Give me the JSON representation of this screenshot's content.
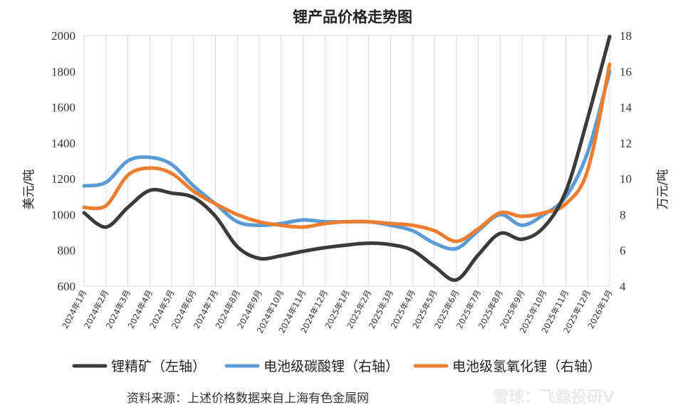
{
  "chart_data": {
    "type": "line",
    "title": "锂产品价格走势图",
    "ylabel_left": "美元/吨",
    "ylabel_right": "万元/吨",
    "ylim_left": [
      600,
      2000
    ],
    "ylim_right": [
      4,
      18
    ],
    "yticks_left": [
      "600",
      "800",
      "1000",
      "1200",
      "1400",
      "1600",
      "1800",
      "2000"
    ],
    "yticks_right": [
      "4",
      "6",
      "8",
      "10",
      "12",
      "14",
      "16",
      "18"
    ],
    "categories": [
      "2024年1月",
      "2024年2月",
      "2024年3月",
      "2024年4月",
      "2024年5月",
      "2024年6月",
      "2024年7月",
      "2024年8月",
      "2024年9月",
      "2024年10月",
      "2024年11月",
      "2024年12月",
      "2025年1月",
      "2025年2月",
      "2025年3月",
      "2025年4月",
      "2025年5月",
      "2025年6月",
      "2025年7月",
      "2025年8月",
      "2025年9月",
      "2025年10月",
      "2025年11月",
      "2025年12月",
      "2026年1月"
    ],
    "series": [
      {
        "name": "锂精矿（左轴）",
        "axis": "left",
        "color": "#3a3a3a",
        "values": [
          1010,
          930,
          1040,
          1135,
          1120,
          1095,
          990,
          820,
          755,
          770,
          795,
          815,
          830,
          840,
          832,
          800,
          710,
          635,
          775,
          895,
          862,
          930,
          1130,
          1540,
          1995
        ]
      },
      {
        "name": "电池级碳酸锂（右轴）",
        "axis": "right",
        "color": "#5b9bd5",
        "values": [
          9.6,
          9.8,
          11.0,
          11.2,
          10.8,
          9.6,
          8.6,
          7.6,
          7.4,
          7.5,
          7.7,
          7.6,
          7.6,
          7.6,
          7.4,
          7.1,
          6.4,
          6.1,
          7.1,
          8.0,
          7.4,
          8.0,
          9.0,
          11.5,
          16.0
        ]
      },
      {
        "name": "电池级氢氧化锂（右轴）",
        "axis": "right",
        "color": "#ed7d31",
        "values": [
          8.4,
          8.5,
          10.2,
          10.6,
          10.3,
          9.3,
          8.6,
          8.0,
          7.6,
          7.4,
          7.3,
          7.5,
          7.6,
          7.6,
          7.5,
          7.4,
          7.1,
          6.5,
          7.2,
          8.1,
          7.9,
          8.1,
          8.6,
          10.5,
          16.4
        ]
      }
    ]
  },
  "source": "资料来源：上述价格数据来自上海有色金属网",
  "watermark": "雪球：飞鲸投研V"
}
